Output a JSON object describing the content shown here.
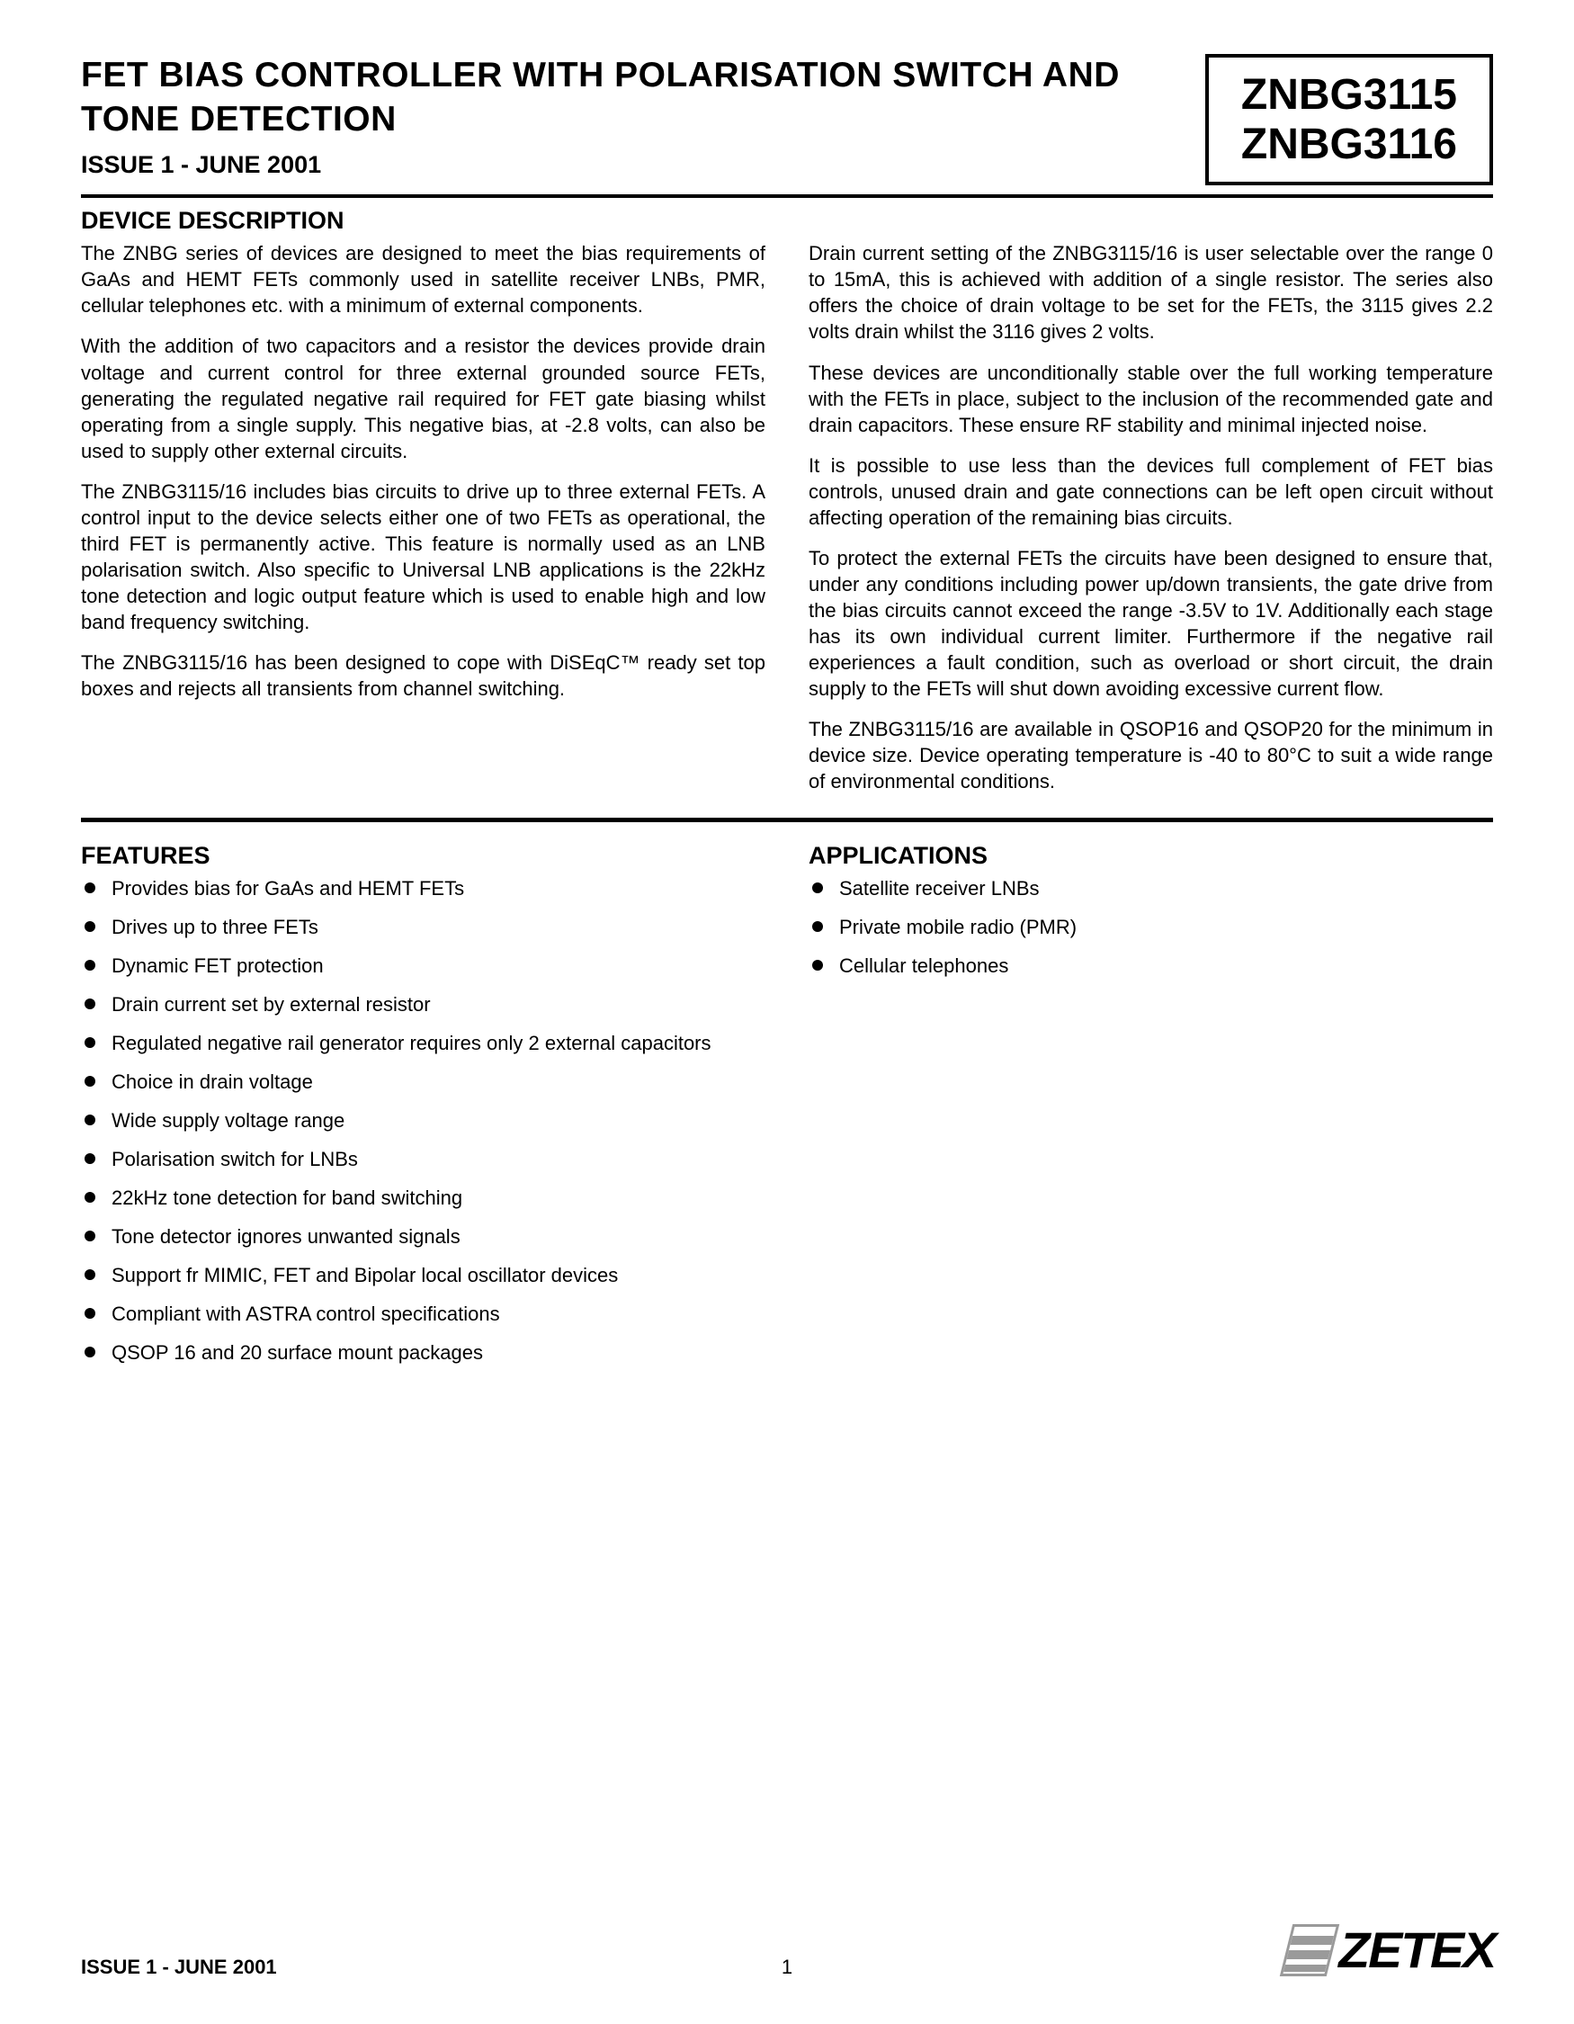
{
  "colors": {
    "text": "#000000",
    "background": "#ffffff",
    "logo_gray": "#9a9a9a"
  },
  "typography": {
    "title_fontsize": 39,
    "part_fontsize": 48,
    "heading_fontsize": 27,
    "body_fontsize": 22,
    "footer_fontsize": 22,
    "logo_fontsize": 56
  },
  "header": {
    "title": "FET BIAS CONTROLLER WITH POLARISATION SWITCH AND TONE DETECTION",
    "issue": "ISSUE 1 - JUNE 2001",
    "part1": "ZNBG3115",
    "part2": "ZNBG3116"
  },
  "description": {
    "heading": "DEVICE DESCRIPTION",
    "p1": "The ZNBG series of devices are designed to meet the bias requirements of GaAs and HEMT FETs commonly used in satellite receiver LNBs, PMR, cellular telephones etc. with a minimum of external components.",
    "p2": "With the addition of two capacitors and a resistor the devices provide drain voltage and current control for three external grounded source FETs, generating the regulated negative rail required for FET gate biasing whilst operating from a single supply. This negative bias, at -2.8 volts, can also be used to supply other external circuits.",
    "p3": "The ZNBG3115/16 includes bias circuits to drive up to three external FETs. A control input to the device selects either one of two FETs as operational, the third FET is permanently active. This feature is normally used as an LNB polarisation switch. Also specific to Universal LNB applications is the 22kHz tone detection and logic output feature which is used to enable high and low band frequency switching.",
    "p4": "The ZNBG3115/16 has been designed to cope with DiSEqC™ ready set top boxes and rejects all transients from channel switching.",
    "p5": "Drain current setting of the ZNBG3115/16 is user selectable over the range 0 to 15mA, this is achieved with addition of a single resistor. The series also offers the choice of drain voltage to be set for the FETs, the 3115 gives 2.2 volts drain whilst the 3116 gives 2 volts.",
    "p6": "These devices are unconditionally stable over the full working temperature with the FETs in place, subject to the inclusion of the recommended gate and drain capacitors. These ensure RF stability and minimal injected noise.",
    "p7": "It is possible to use less than the devices full complement of FET bias controls, unused drain and gate connections can be left open circuit without affecting operation of the remaining bias circuits.",
    "p8": "To protect the external FETs the circuits have been designed to ensure that, under any conditions including power up/down transients, the gate drive from the bias circuits cannot exceed the range -3.5V to 1V. Additionally each stage has its own individual current limiter. Furthermore if the negative rail experiences a fault condition, such as overload or short circuit, the drain supply to the FETs will shut down avoiding excessive current flow.",
    "p9": "The ZNBG3115/16 are available in QSOP16 and QSOP20 for the minimum in device size. Device operating temperature is -40 to 80°C to suit a wide range of environmental conditions."
  },
  "features": {
    "heading": "FEATURES",
    "items": [
      "Provides bias for GaAs and HEMT FETs",
      "Drives up to three FETs",
      "Dynamic FET protection",
      "Drain current set by external resistor",
      "Regulated negative rail generator requires only 2 external capacitors",
      "Choice in drain voltage",
      "Wide supply voltage range",
      "Polarisation switch for LNBs",
      "22kHz tone detection for band switching",
      "Tone detector ignores unwanted signals",
      "Support fr MIMIC, FET and Bipolar local oscillator devices",
      "Compliant with ASTRA control specifications",
      "QSOP 16 and 20 surface mount packages"
    ]
  },
  "applications": {
    "heading": "APPLICATIONS",
    "items": [
      "Satellite receiver LNBs",
      "Private mobile radio (PMR)",
      "Cellular telephones"
    ]
  },
  "footer": {
    "left": "ISSUE 1 - JUNE 2001",
    "page": "1",
    "logo_text": "ZETEX"
  }
}
